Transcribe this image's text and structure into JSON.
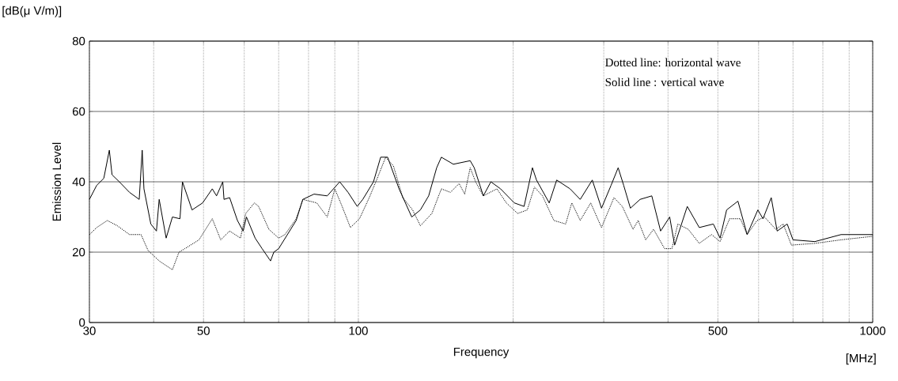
{
  "chart_data": {
    "type": "line",
    "xlabel": "Frequency",
    "ylabel": "Emission Level",
    "annotations": [
      "[dB(μ V/m)]",
      "Dotted line: horizontal wave",
      "Solid line : vertical wave",
      "[MHz]"
    ],
    "log": "x",
    "grid": true,
    "marker": "none",
    "xlim": [
      30,
      1000
    ],
    "ylim": [
      0,
      80
    ],
    "xticks": [
      30,
      {
        "value": 40,
        "label": null
      },
      50,
      {
        "value": 60,
        "label": null
      },
      {
        "value": 70,
        "label": null
      },
      {
        "value": 80,
        "label": null
      },
      {
        "value": 90,
        "label": null
      },
      100,
      {
        "value": 200,
        "label": null
      },
      {
        "value": 300,
        "label": null
      },
      {
        "value": 400,
        "label": null
      },
      500,
      {
        "value": 600,
        "label": null
      },
      {
        "value": 700,
        "label": null
      },
      {
        "value": 800,
        "label": null
      },
      {
        "value": 900,
        "label": null
      },
      1000
    ],
    "yticks": [
      0,
      20,
      40,
      60,
      80
    ],
    "series": [
      {
        "color": "#000000",
        "line_style": "dotted",
        "x": [
          30,
          31,
          32.5,
          34,
          35.9,
          37.8,
          39,
          41,
          43.5,
          44.8,
          46,
          49,
          52,
          54,
          56.2,
          59,
          60.4,
          62.8,
          64,
          67,
          70,
          72,
          75.7,
          78,
          83,
          87,
          90,
          93,
          96.5,
          100.5,
          105,
          108.5,
          113,
          117,
          122,
          127.5,
          132,
          139,
          145,
          151,
          157,
          161,
          165,
          169,
          175,
          186,
          194,
          204,
          213,
          220,
          228,
          240,
          253,
          260,
          270,
          283,
          297,
          314,
          326,
          342,
          350,
          362,
          375,
          394,
          407,
          418,
          438,
          460,
          486,
          505,
          527,
          553,
          570,
          596,
          616,
          648,
          670,
          695,
          772,
          868,
          1000
        ],
        "values": [
          25,
          27,
          29,
          27.5,
          25,
          25,
          20.5,
          17.5,
          15,
          20,
          21,
          23.5,
          29.5,
          23.5,
          26,
          24,
          31,
          34,
          33,
          26.5,
          24,
          25,
          29.5,
          35,
          34,
          30,
          38,
          33,
          27,
          29.5,
          35.5,
          40.5,
          47,
          44.5,
          35.5,
          32,
          27.5,
          31,
          38,
          37,
          39.5,
          36.5,
          44,
          40,
          36,
          38,
          34,
          31,
          32,
          38.5,
          36,
          29,
          28,
          34,
          29,
          34,
          27,
          35.5,
          33,
          26.5,
          29,
          23.5,
          26.5,
          21,
          21,
          28,
          26.5,
          22.5,
          25,
          23,
          29.5,
          29.5,
          25,
          29,
          30,
          26.5,
          28,
          22,
          22.5,
          23.5,
          24.5
        ]
      },
      {
        "color": "#000000",
        "line_style": "solid",
        "x": [
          30,
          31,
          32,
          32.8,
          33.2,
          34.3,
          35.9,
          37.5,
          38,
          38.3,
          39.5,
          40.5,
          41,
          42.3,
          43.5,
          45,
          45.5,
          47.5,
          49.8,
          52,
          53,
          54.5,
          54.8,
          56.2,
          58.2,
          59.7,
          60.6,
          63,
          65,
          67.5,
          68.5,
          70,
          75.7,
          78,
          82,
          87,
          92,
          95.5,
          99.5,
          102,
          107,
          110.5,
          114,
          120,
          127,
          132,
          137,
          142,
          145,
          153,
          165,
          168,
          175,
          181,
          189,
          201,
          210,
          218,
          222,
          235,
          243,
          258,
          270,
          285,
          297,
          310,
          320,
          328,
          338,
          353,
          372,
          387,
          403,
          412,
          436,
          460,
          490,
          505,
          520,
          547,
          570,
          598,
          612,
          635,
          652,
          682,
          700,
          772,
          868,
          1000
        ],
        "values": [
          35,
          39,
          41,
          49,
          42,
          40,
          37,
          35,
          49,
          38,
          28,
          26,
          35,
          24,
          30,
          29.5,
          40,
          32,
          34,
          38,
          36,
          40,
          35,
          35.5,
          29,
          26,
          30,
          24,
          21,
          17.5,
          20,
          21,
          29,
          35,
          36.5,
          36,
          40,
          37,
          33,
          35,
          40,
          47,
          47,
          38,
          30,
          32,
          36,
          44,
          47,
          45,
          46,
          44,
          36,
          40,
          38,
          34,
          33,
          44,
          40.5,
          34,
          40.5,
          38,
          35,
          40.5,
          32.5,
          39,
          44,
          39,
          32.5,
          35,
          36,
          26,
          30,
          22,
          33,
          27,
          28,
          24,
          32,
          34.5,
          25,
          32,
          29.5,
          35.5,
          26,
          28,
          23.5,
          23,
          25,
          25
        ]
      }
    ]
  }
}
